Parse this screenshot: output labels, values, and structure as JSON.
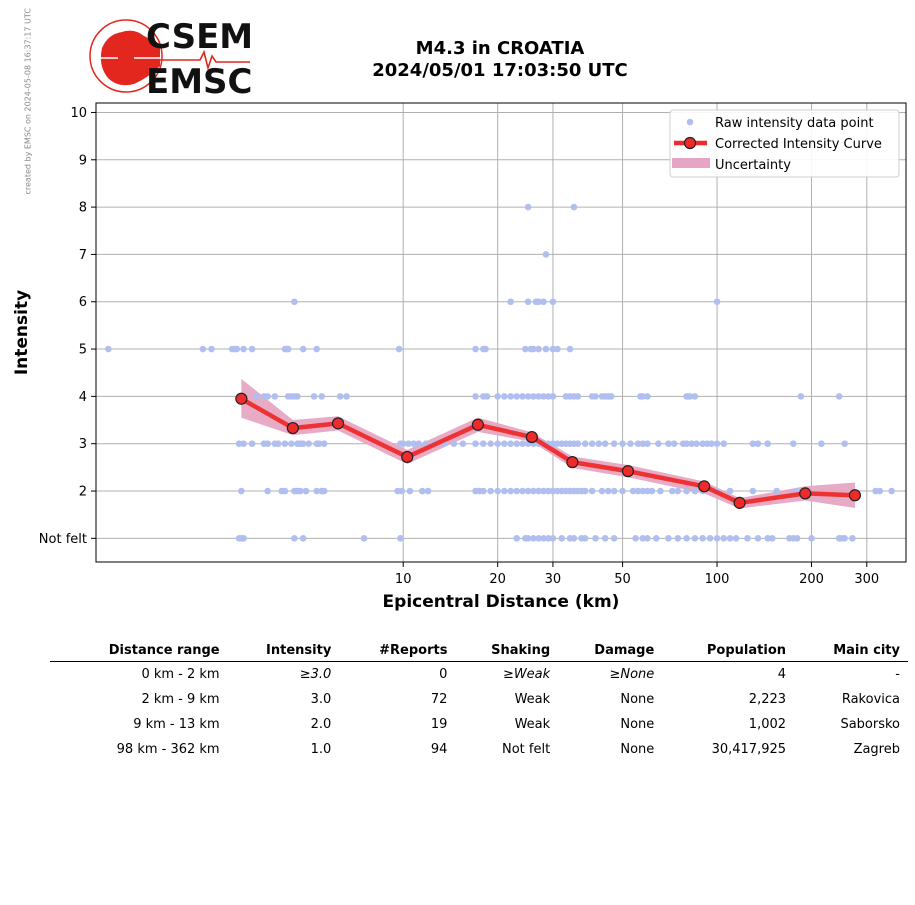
{
  "credit": "created by EMSC on 2024-05-08 16:37:17 UTC",
  "logo": {
    "line1": "CSEM",
    "line2": "EMSC",
    "brand_color": "#e3271f"
  },
  "title": {
    "line1": "M4.3 in CROATIA",
    "line2": "2024/05/01 17:03:50 UTC"
  },
  "chart_data": {
    "type": "scatter",
    "xscale": "log",
    "xlabel": "Epicentral Distance (km)",
    "ylabel": "Intensity",
    "xlim": [
      1.05,
      400
    ],
    "ylim": [
      0.5,
      10.2
    ],
    "grid": true,
    "x_ticks": [
      10,
      20,
      30,
      50,
      100,
      200,
      300
    ],
    "y_ticks": [
      {
        "value": 1,
        "label": "Not felt"
      },
      {
        "value": 2,
        "label": "2"
      },
      {
        "value": 3,
        "label": "3"
      },
      {
        "value": 4,
        "label": "4"
      },
      {
        "value": 5,
        "label": "5"
      },
      {
        "value": 6,
        "label": "6"
      },
      {
        "value": 7,
        "label": "7"
      },
      {
        "value": 8,
        "label": "8"
      },
      {
        "value": 9,
        "label": "9"
      },
      {
        "value": 10,
        "label": "10"
      }
    ],
    "legend_position": "top-right",
    "colors": {
      "raw": "#b0bff0",
      "curve": "#ee2a2a",
      "uncertainty": "#e6a6c3",
      "marker_edge": "#222222",
      "grid": "#b0b0b0"
    },
    "series": [
      {
        "name": "Raw intensity data point",
        "points": [
          [
            1.15,
            5
          ],
          [
            2.3,
            5
          ],
          [
            2.45,
            5
          ],
          [
            2.85,
            5
          ],
          [
            2.9,
            5
          ],
          [
            2.95,
            5
          ],
          [
            3.1,
            5
          ],
          [
            3.3,
            5
          ],
          [
            4.2,
            5
          ],
          [
            4.25,
            5
          ],
          [
            4.3,
            5
          ],
          [
            4.8,
            5
          ],
          [
            5.3,
            5
          ],
          [
            9.7,
            5
          ],
          [
            17,
            5
          ],
          [
            18,
            5
          ],
          [
            18.3,
            5
          ],
          [
            24.5,
            5
          ],
          [
            25.5,
            5
          ],
          [
            26,
            5
          ],
          [
            27,
            5
          ],
          [
            28.5,
            5
          ],
          [
            30,
            5
          ],
          [
            31,
            5
          ],
          [
            34,
            5
          ],
          [
            3.4,
            4
          ],
          [
            3.6,
            4
          ],
          [
            3.7,
            4
          ],
          [
            3.9,
            4
          ],
          [
            4.3,
            4
          ],
          [
            4.4,
            4
          ],
          [
            4.5,
            4
          ],
          [
            4.6,
            4
          ],
          [
            5.2,
            4
          ],
          [
            5.5,
            4
          ],
          [
            6.3,
            4
          ],
          [
            6.6,
            4
          ],
          [
            17,
            4
          ],
          [
            18,
            4
          ],
          [
            18.5,
            4
          ],
          [
            20,
            4
          ],
          [
            21,
            4
          ],
          [
            22,
            4
          ],
          [
            23,
            4
          ],
          [
            24,
            4
          ],
          [
            25,
            4
          ],
          [
            26,
            4
          ],
          [
            27,
            4
          ],
          [
            28,
            4
          ],
          [
            29,
            4
          ],
          [
            30,
            4
          ],
          [
            33,
            4
          ],
          [
            34,
            4
          ],
          [
            35,
            4
          ],
          [
            36,
            4
          ],
          [
            40,
            4
          ],
          [
            41,
            4
          ],
          [
            43,
            4
          ],
          [
            44,
            4
          ],
          [
            45,
            4
          ],
          [
            46,
            4
          ],
          [
            57,
            4
          ],
          [
            58,
            4
          ],
          [
            60,
            4
          ],
          [
            80,
            4
          ],
          [
            81,
            4
          ],
          [
            82,
            4
          ],
          [
            85,
            4
          ],
          [
            185,
            4
          ],
          [
            245,
            4
          ],
          [
            3.0,
            3
          ],
          [
            3.1,
            3
          ],
          [
            3.3,
            3
          ],
          [
            3.6,
            3
          ],
          [
            3.7,
            3
          ],
          [
            3.9,
            3
          ],
          [
            4.0,
            3
          ],
          [
            4.2,
            3
          ],
          [
            4.4,
            3
          ],
          [
            4.6,
            3
          ],
          [
            4.7,
            3
          ],
          [
            4.8,
            3
          ],
          [
            5.0,
            3
          ],
          [
            5.3,
            3
          ],
          [
            5.4,
            3
          ],
          [
            5.6,
            3
          ],
          [
            9.8,
            3
          ],
          [
            10,
            3
          ],
          [
            10.4,
            3
          ],
          [
            10.8,
            3
          ],
          [
            11.2,
            3
          ],
          [
            11.8,
            3
          ],
          [
            12.5,
            3
          ],
          [
            13.5,
            3
          ],
          [
            14.5,
            3
          ],
          [
            15.5,
            3
          ],
          [
            17,
            3
          ],
          [
            18,
            3
          ],
          [
            19,
            3
          ],
          [
            20,
            3
          ],
          [
            21,
            3
          ],
          [
            22,
            3
          ],
          [
            23,
            3
          ],
          [
            24,
            3
          ],
          [
            25,
            3
          ],
          [
            26,
            3
          ],
          [
            27,
            3
          ],
          [
            28,
            3
          ],
          [
            29,
            3
          ],
          [
            30,
            3
          ],
          [
            31,
            3
          ],
          [
            32,
            3
          ],
          [
            33,
            3
          ],
          [
            34,
            3
          ],
          [
            35,
            3
          ],
          [
            36,
            3
          ],
          [
            38,
            3
          ],
          [
            40,
            3
          ],
          [
            42,
            3
          ],
          [
            44,
            3
          ],
          [
            47,
            3
          ],
          [
            50,
            3
          ],
          [
            53,
            3
          ],
          [
            56,
            3
          ],
          [
            58,
            3
          ],
          [
            60,
            3
          ],
          [
            65,
            3
          ],
          [
            70,
            3
          ],
          [
            73,
            3
          ],
          [
            78,
            3
          ],
          [
            80,
            3
          ],
          [
            83,
            3
          ],
          [
            86,
            3
          ],
          [
            90,
            3
          ],
          [
            93,
            3
          ],
          [
            96,
            3
          ],
          [
            100,
            3
          ],
          [
            105,
            3
          ],
          [
            130,
            3
          ],
          [
            135,
            3
          ],
          [
            145,
            3
          ],
          [
            175,
            3
          ],
          [
            215,
            3
          ],
          [
            255,
            3
          ],
          [
            3.05,
            2
          ],
          [
            3.7,
            2
          ],
          [
            4.1,
            2
          ],
          [
            4.2,
            2
          ],
          [
            4.5,
            2
          ],
          [
            4.6,
            2
          ],
          [
            4.7,
            2
          ],
          [
            4.9,
            2
          ],
          [
            5.3,
            2
          ],
          [
            5.5,
            2
          ],
          [
            5.6,
            2
          ],
          [
            9.6,
            2
          ],
          [
            9.9,
            2
          ],
          [
            10.5,
            2
          ],
          [
            11.5,
            2
          ],
          [
            12,
            2
          ],
          [
            17,
            2
          ],
          [
            17.5,
            2
          ],
          [
            18,
            2
          ],
          [
            19,
            2
          ],
          [
            20,
            2
          ],
          [
            21,
            2
          ],
          [
            22,
            2
          ],
          [
            23,
            2
          ],
          [
            24,
            2
          ],
          [
            25,
            2
          ],
          [
            26,
            2
          ],
          [
            27,
            2
          ],
          [
            28,
            2
          ],
          [
            29,
            2
          ],
          [
            30,
            2
          ],
          [
            31,
            2
          ],
          [
            32,
            2
          ],
          [
            33,
            2
          ],
          [
            34,
            2
          ],
          [
            35,
            2
          ],
          [
            36,
            2
          ],
          [
            37,
            2
          ],
          [
            38,
            2
          ],
          [
            40,
            2
          ],
          [
            43,
            2
          ],
          [
            45,
            2
          ],
          [
            47,
            2
          ],
          [
            50,
            2
          ],
          [
            54,
            2
          ],
          [
            56,
            2
          ],
          [
            58,
            2
          ],
          [
            60,
            2
          ],
          [
            62,
            2
          ],
          [
            66,
            2
          ],
          [
            72,
            2
          ],
          [
            75,
            2
          ],
          [
            80,
            2
          ],
          [
            85,
            2
          ],
          [
            90,
            2
          ],
          [
            100,
            2
          ],
          [
            110,
            2
          ],
          [
            130,
            2
          ],
          [
            155,
            2
          ],
          [
            180,
            2
          ],
          [
            320,
            2
          ],
          [
            330,
            2
          ],
          [
            360,
            2
          ],
          [
            3.0,
            1
          ],
          [
            3.05,
            1
          ],
          [
            3.1,
            1
          ],
          [
            4.5,
            1
          ],
          [
            4.8,
            1
          ],
          [
            7.5,
            1
          ],
          [
            9.8,
            1
          ],
          [
            23,
            1
          ],
          [
            24.5,
            1
          ],
          [
            25,
            1
          ],
          [
            26,
            1
          ],
          [
            27,
            1
          ],
          [
            28,
            1
          ],
          [
            29,
            1
          ],
          [
            30,
            1
          ],
          [
            32,
            1
          ],
          [
            34,
            1
          ],
          [
            35,
            1
          ],
          [
            37,
            1
          ],
          [
            38,
            1
          ],
          [
            41,
            1
          ],
          [
            44,
            1
          ],
          [
            47,
            1
          ],
          [
            55,
            1
          ],
          [
            58,
            1
          ],
          [
            60,
            1
          ],
          [
            64,
            1
          ],
          [
            70,
            1
          ],
          [
            75,
            1
          ],
          [
            80,
            1
          ],
          [
            85,
            1
          ],
          [
            90,
            1
          ],
          [
            95,
            1
          ],
          [
            100,
            1
          ],
          [
            105,
            1
          ],
          [
            110,
            1
          ],
          [
            115,
            1
          ],
          [
            125,
            1
          ],
          [
            135,
            1
          ],
          [
            145,
            1
          ],
          [
            150,
            1
          ],
          [
            170,
            1
          ],
          [
            175,
            1
          ],
          [
            180,
            1
          ],
          [
            200,
            1
          ],
          [
            245,
            1
          ],
          [
            250,
            1
          ],
          [
            255,
            1
          ],
          [
            270,
            1
          ],
          [
            4.5,
            6
          ],
          [
            25,
            6
          ],
          [
            27,
            6
          ],
          [
            28,
            6
          ],
          [
            30,
            6
          ],
          [
            22,
            6
          ],
          [
            26.5,
            6
          ],
          [
            100,
            6
          ],
          [
            28.5,
            7
          ],
          [
            25,
            8
          ],
          [
            35,
            8
          ]
        ]
      },
      {
        "name": "Corrected Intensity Curve",
        "points": [
          [
            3.05,
            3.95
          ],
          [
            4.45,
            3.33
          ],
          [
            6.2,
            3.43
          ],
          [
            10.3,
            2.72
          ],
          [
            17.3,
            3.4
          ],
          [
            25.7,
            3.14
          ],
          [
            34.6,
            2.61
          ],
          [
            52,
            2.42
          ],
          [
            91,
            2.1
          ],
          [
            118,
            1.75
          ],
          [
            191,
            1.95
          ],
          [
            275,
            1.91
          ]
        ]
      },
      {
        "name": "Uncertainty",
        "upper": [
          4.37,
          3.5,
          3.58,
          2.87,
          3.55,
          3.24,
          2.73,
          2.55,
          2.2,
          1.85,
          2.1,
          2.18
        ],
        "lower": [
          3.55,
          3.18,
          3.28,
          2.57,
          3.25,
          3.04,
          2.49,
          2.29,
          1.95,
          1.63,
          1.8,
          1.64
        ]
      }
    ]
  },
  "table": {
    "headers": [
      "Distance range",
      "Intensity",
      "#Reports",
      "Shaking",
      "Damage",
      "Population",
      "Main city"
    ],
    "rows": [
      [
        "0 km -    2 km",
        "≥3.0",
        "0",
        "≥Weak",
        "≥None",
        "4",
        "-"
      ],
      [
        "2 km -    9 km",
        "3.0",
        "72",
        "Weak",
        "None",
        "2,223",
        "Rakovica"
      ],
      [
        "9 km -   13 km",
        "2.0",
        "19",
        "Weak",
        "None",
        "1,002",
        "Saborsko"
      ],
      [
        "98 km -  362 km",
        "1.0",
        "94",
        "Not felt",
        "None",
        "30,417,925",
        "Zagreb"
      ]
    ]
  }
}
